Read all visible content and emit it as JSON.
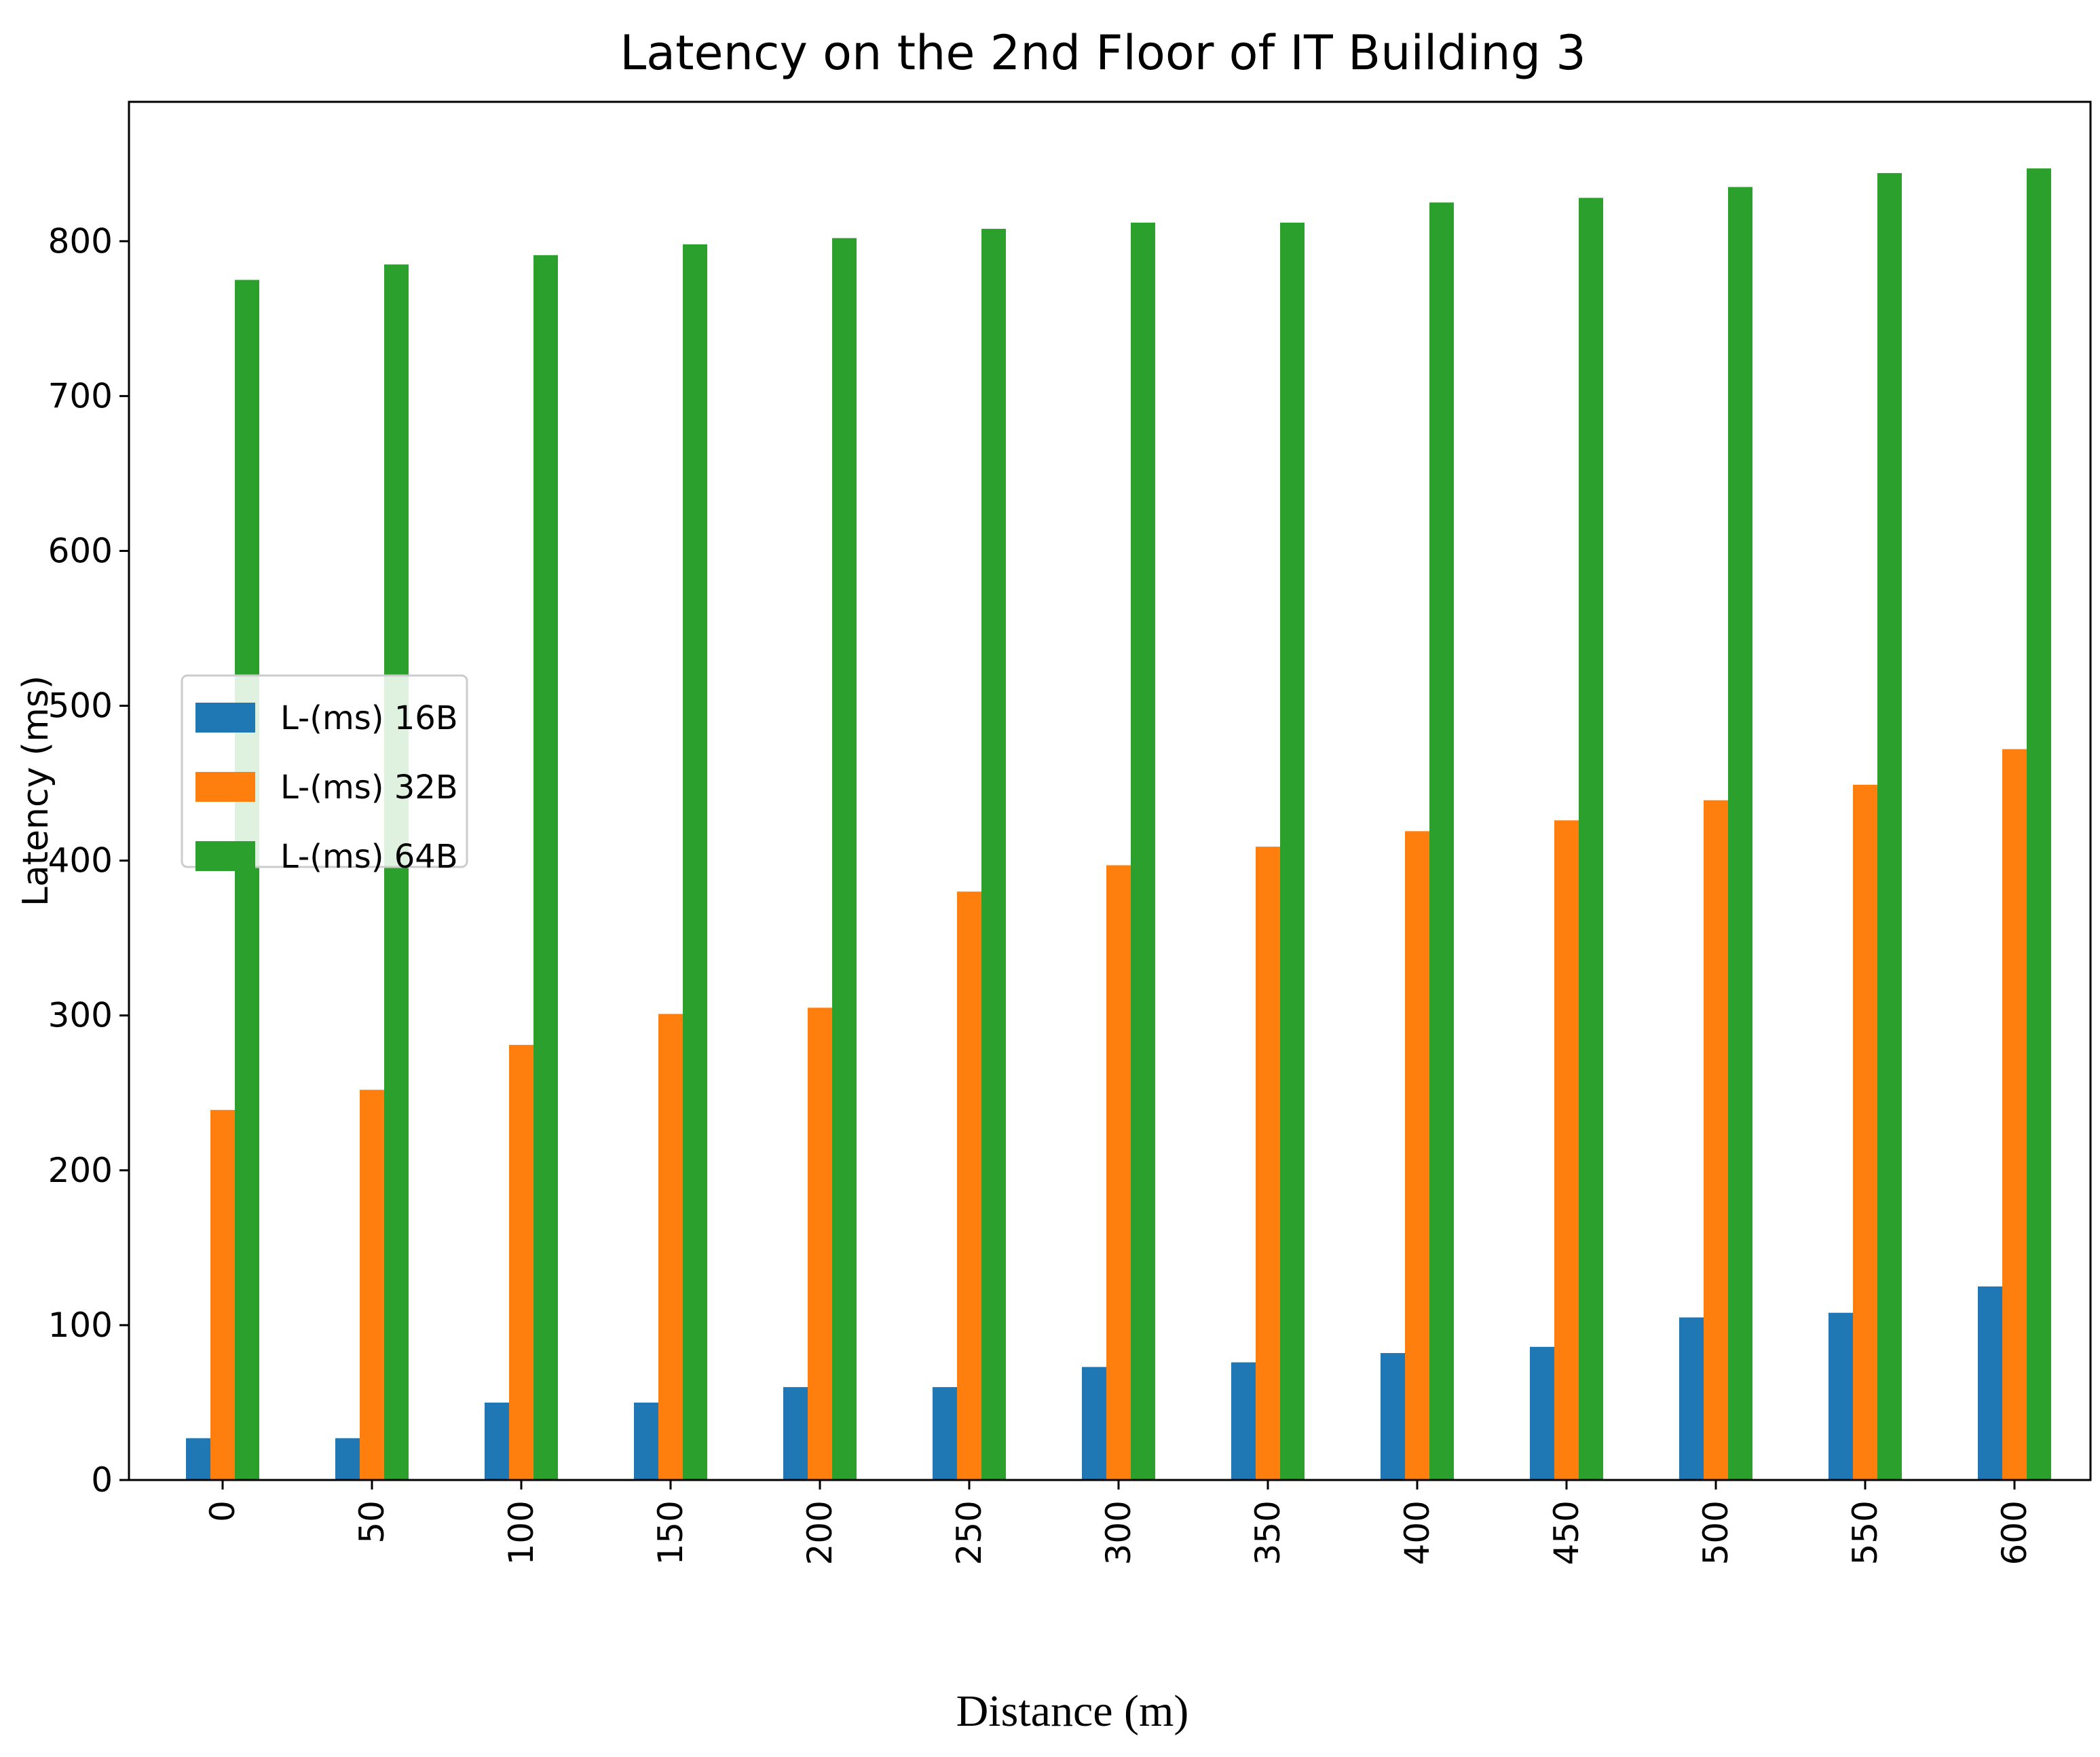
{
  "chart_data": {
    "type": "bar",
    "title": "Latency on the 2nd Floor of IT Building 3",
    "xlabel": "Distance (m)",
    "ylabel": "Latency (ms)",
    "categories": [
      "0",
      "50",
      "100",
      "150",
      "200",
      "250",
      "300",
      "350",
      "400",
      "450",
      "500",
      "550",
      "600"
    ],
    "series": [
      {
        "name": "L-(ms) 16B",
        "color": "#1f77b4",
        "values": [
          27,
          27,
          50,
          50,
          60,
          60,
          73,
          76,
          82,
          86,
          105,
          108,
          125
        ]
      },
      {
        "name": "L-(ms) 32B",
        "color": "#ff7f0e",
        "values": [
          239,
          252,
          281,
          301,
          305,
          380,
          397,
          409,
          419,
          426,
          439,
          449,
          472
        ]
      },
      {
        "name": "L-(ms) 64B",
        "color": "#2ca02c",
        "values": [
          775,
          785,
          791,
          798,
          802,
          808,
          812,
          812,
          825,
          828,
          835,
          844,
          847
        ]
      }
    ],
    "yticks": [
      0,
      100,
      200,
      300,
      400,
      500,
      600,
      700,
      800
    ],
    "ylim": [
      0,
      890
    ],
    "legend_position": "center-left",
    "grid": false
  }
}
